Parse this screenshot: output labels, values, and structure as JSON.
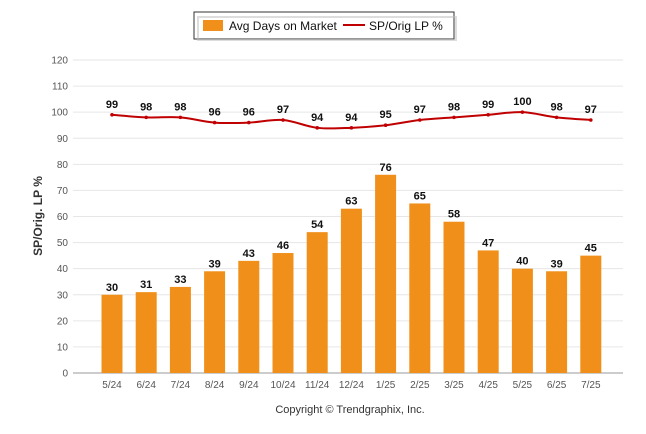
{
  "chart_data": {
    "type": "bar",
    "categories": [
      "5/24",
      "6/24",
      "7/24",
      "8/24",
      "9/24",
      "10/24",
      "11/24",
      "12/24",
      "1/25",
      "2/25",
      "3/25",
      "4/25",
      "5/25",
      "6/25",
      "7/25"
    ],
    "series": [
      {
        "name": "Avg Days on Market",
        "type": "bar",
        "color": "#F0901A",
        "values": [
          30,
          31,
          33,
          39,
          43,
          46,
          54,
          63,
          76,
          65,
          58,
          47,
          40,
          39,
          45
        ]
      },
      {
        "name": "SP/Orig LP %",
        "type": "line",
        "color": "#C00000",
        "values": [
          99,
          98,
          98,
          96,
          96,
          97,
          94,
          94,
          95,
          97,
          98,
          99,
          100,
          98,
          97
        ]
      }
    ],
    "ylabel": "SP/Orig. LP %",
    "ylim": [
      0,
      120
    ],
    "yticks": [
      0,
      10,
      20,
      30,
      40,
      50,
      60,
      70,
      80,
      90,
      100,
      110,
      120
    ],
    "grid": true,
    "legend_position": "top-center"
  },
  "footer": {
    "copyright": "Copyright © Trendgraphix, Inc."
  }
}
